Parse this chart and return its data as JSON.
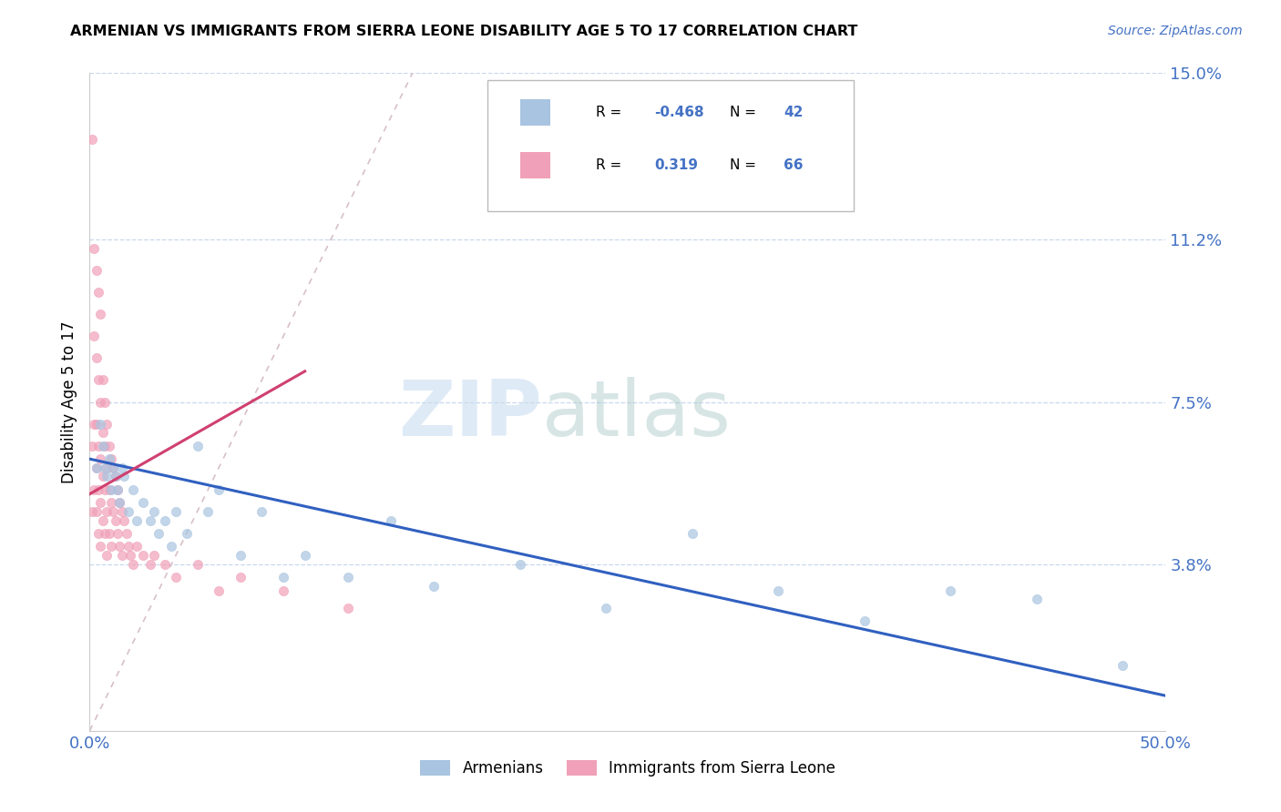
{
  "title": "ARMENIAN VS IMMIGRANTS FROM SIERRA LEONE DISABILITY AGE 5 TO 17 CORRELATION CHART",
  "source": "Source: ZipAtlas.com",
  "ylabel": "Disability Age 5 to 17",
  "ytick_vals": [
    0.0,
    0.038,
    0.075,
    0.112,
    0.15
  ],
  "ytick_labels": [
    "",
    "3.8%",
    "7.5%",
    "11.2%",
    "15.0%"
  ],
  "xlim": [
    0.0,
    0.5
  ],
  "ylim": [
    0.0,
    0.15
  ],
  "color_armenian": "#a8c4e0",
  "color_sierra": "#f0a0b8",
  "color_trend_armenian": "#3060c0",
  "color_trend_sierra": "#d04070",
  "color_axis_labels": "#4472c4",
  "color_grid": "#c8d8ec",
  "watermark_zip": "ZIP",
  "watermark_atlas": "atlas",
  "armenian_x": [
    0.003,
    0.005,
    0.006,
    0.007,
    0.008,
    0.009,
    0.01,
    0.011,
    0.012,
    0.013,
    0.014,
    0.015,
    0.016,
    0.018,
    0.02,
    0.022,
    0.025,
    0.028,
    0.03,
    0.032,
    0.035,
    0.038,
    0.04,
    0.045,
    0.05,
    0.055,
    0.06,
    0.07,
    0.08,
    0.09,
    0.1,
    0.12,
    0.14,
    0.16,
    0.2,
    0.24,
    0.28,
    0.32,
    0.36,
    0.4,
    0.44,
    0.48
  ],
  "armenian_y": [
    0.06,
    0.07,
    0.065,
    0.06,
    0.058,
    0.062,
    0.055,
    0.06,
    0.058,
    0.055,
    0.052,
    0.06,
    0.058,
    0.05,
    0.055,
    0.048,
    0.052,
    0.048,
    0.05,
    0.045,
    0.048,
    0.042,
    0.05,
    0.045,
    0.065,
    0.05,
    0.055,
    0.04,
    0.05,
    0.035,
    0.04,
    0.035,
    0.048,
    0.033,
    0.038,
    0.028,
    0.045,
    0.032,
    0.025,
    0.032,
    0.03,
    0.015
  ],
  "sierra_x": [
    0.001,
    0.001,
    0.001,
    0.002,
    0.002,
    0.002,
    0.002,
    0.003,
    0.003,
    0.003,
    0.003,
    0.003,
    0.004,
    0.004,
    0.004,
    0.004,
    0.004,
    0.005,
    0.005,
    0.005,
    0.005,
    0.005,
    0.006,
    0.006,
    0.006,
    0.006,
    0.007,
    0.007,
    0.007,
    0.007,
    0.008,
    0.008,
    0.008,
    0.008,
    0.009,
    0.009,
    0.009,
    0.01,
    0.01,
    0.01,
    0.011,
    0.011,
    0.012,
    0.012,
    0.013,
    0.013,
    0.014,
    0.014,
    0.015,
    0.015,
    0.016,
    0.017,
    0.018,
    0.019,
    0.02,
    0.022,
    0.025,
    0.028,
    0.03,
    0.035,
    0.04,
    0.05,
    0.06,
    0.07,
    0.09,
    0.12
  ],
  "sierra_y": [
    0.135,
    0.065,
    0.05,
    0.11,
    0.09,
    0.07,
    0.055,
    0.105,
    0.085,
    0.07,
    0.06,
    0.05,
    0.1,
    0.08,
    0.065,
    0.055,
    0.045,
    0.095,
    0.075,
    0.062,
    0.052,
    0.042,
    0.08,
    0.068,
    0.058,
    0.048,
    0.075,
    0.065,
    0.055,
    0.045,
    0.07,
    0.06,
    0.05,
    0.04,
    0.065,
    0.055,
    0.045,
    0.062,
    0.052,
    0.042,
    0.06,
    0.05,
    0.058,
    0.048,
    0.055,
    0.045,
    0.052,
    0.042,
    0.05,
    0.04,
    0.048,
    0.045,
    0.042,
    0.04,
    0.038,
    0.042,
    0.04,
    0.038,
    0.04,
    0.038,
    0.035,
    0.038,
    0.032,
    0.035,
    0.032,
    0.028
  ],
  "trend_arm_x0": 0.0,
  "trend_arm_x1": 0.5,
  "trend_arm_y0": 0.062,
  "trend_arm_y1": 0.008,
  "trend_sl_x0": 0.0,
  "trend_sl_x1": 0.1,
  "trend_sl_y0": 0.054,
  "trend_sl_y1": 0.082
}
